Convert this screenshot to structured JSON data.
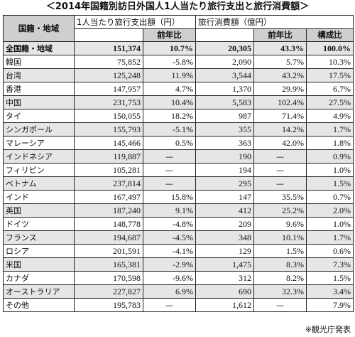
{
  "title": "＜2014年国籍別訪日外国人1人当たり旅行支出と旅行消費額＞",
  "headers": {
    "region": "国籍・地域",
    "per_capita": "1人当たり旅行支出額（円）",
    "consumption": "旅行消費額（億円）",
    "yoy": "前年比",
    "share": "構成比"
  },
  "rows": [
    {
      "name": "全国籍・地域",
      "per": "151,374",
      "per_yoy": "10.7%",
      "cons": "20,305",
      "cons_yoy": "43.3%",
      "share": "100.0%",
      "total": true
    },
    {
      "name": "韓国",
      "per": "75,852",
      "per_yoy": "-5.8%",
      "cons": "2,090",
      "cons_yoy": "5.7%",
      "share": "10.3%"
    },
    {
      "name": "台湾",
      "per": "125,248",
      "per_yoy": "11.9%",
      "cons": "3,544",
      "cons_yoy": "43.2%",
      "share": "17.5%"
    },
    {
      "name": "香港",
      "per": "147,957",
      "per_yoy": "4.7%",
      "cons": "1,370",
      "cons_yoy": "29.9%",
      "share": "6.7%"
    },
    {
      "name": "中国",
      "per": "231,753",
      "per_yoy": "10.4%",
      "cons": "5,583",
      "cons_yoy": "102.4%",
      "share": "27.5%"
    },
    {
      "name": "タイ",
      "per": "150,055",
      "per_yoy": "18.2%",
      "cons": "987",
      "cons_yoy": "71.4%",
      "share": "4.9%"
    },
    {
      "name": "シンガポール",
      "per": "155,793",
      "per_yoy": "-5.1%",
      "cons": "355",
      "cons_yoy": "14.2%",
      "share": "1.7%"
    },
    {
      "name": "マレーシア",
      "per": "145,466",
      "per_yoy": "0.5%",
      "cons": "363",
      "cons_yoy": "42.0%",
      "share": "1.8%"
    },
    {
      "name": "インドネシア",
      "per": "119,887",
      "per_yoy": "—",
      "cons": "190",
      "cons_yoy": "—",
      "share": "0.9%"
    },
    {
      "name": "フィリピン",
      "per": "105,281",
      "per_yoy": "—",
      "cons": "194",
      "cons_yoy": "—",
      "share": "1.0%"
    },
    {
      "name": "ベトナム",
      "per": "237,814",
      "per_yoy": "—",
      "cons": "295",
      "cons_yoy": "—",
      "share": "1.5%"
    },
    {
      "name": "インド",
      "per": "167,497",
      "per_yoy": "15.8%",
      "cons": "147",
      "cons_yoy": "35.5%",
      "share": "0.7%"
    },
    {
      "name": "英国",
      "per": "187,240",
      "per_yoy": "9.1%",
      "cons": "412",
      "cons_yoy": "25.2%",
      "share": "2.0%"
    },
    {
      "name": "ドイツ",
      "per": "148,778",
      "per_yoy": "-4.8%",
      "cons": "209",
      "cons_yoy": "9.6%",
      "share": "1.0%"
    },
    {
      "name": "フランス",
      "per": "194,687",
      "per_yoy": "-4.5%",
      "cons": "348",
      "cons_yoy": "10.1%",
      "share": "1.7%"
    },
    {
      "name": "ロシア",
      "per": "201,591",
      "per_yoy": "-4.1%",
      "cons": "129",
      "cons_yoy": "1.5%",
      "share": "0.6%"
    },
    {
      "name": "米国",
      "per": "165,381",
      "per_yoy": "-2.9%",
      "cons": "1,475",
      "cons_yoy": "8.3%",
      "share": "7.3%"
    },
    {
      "name": "カナダ",
      "per": "170,598",
      "per_yoy": "-9.6%",
      "cons": "312",
      "cons_yoy": "8.2%",
      "share": "1.5%"
    },
    {
      "name": "オーストラリア",
      "per": "227,827",
      "per_yoy": "6.9%",
      "cons": "690",
      "cons_yoy": "32.3%",
      "share": "3.4%"
    },
    {
      "name": "その他",
      "per": "195,783",
      "per_yoy": "—",
      "cons": "1,612",
      "cons_yoy": "—",
      "share": "7.9%"
    }
  ],
  "footnote": "※観光庁発表",
  "colors": {
    "header_bg": "#cfcfcf",
    "zebra_bg": "#e6e6e6",
    "border": "#222222"
  }
}
